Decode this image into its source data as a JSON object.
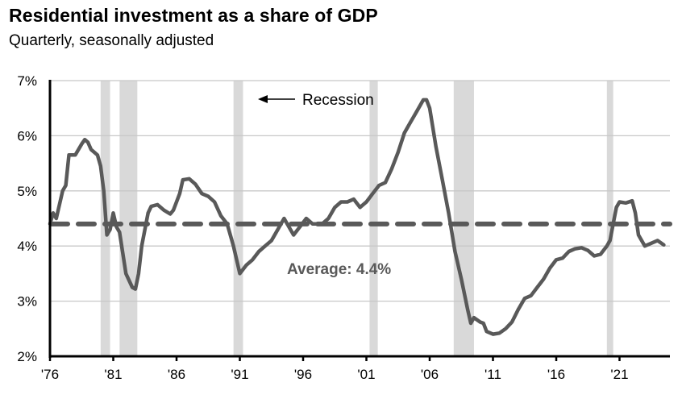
{
  "chart_data": {
    "type": "line",
    "title": "Residential investment as a share of GDP",
    "subtitle": "Quarterly, seasonally adjusted",
    "xlabel": "",
    "ylabel": "",
    "xlim": [
      1976,
      2025
    ],
    "ylim": [
      2,
      7
    ],
    "grid": true,
    "y_ticks": [
      2,
      3,
      4,
      5,
      6,
      7
    ],
    "y_tick_labels": [
      "2%",
      "3%",
      "4%",
      "5%",
      "6%",
      "7%"
    ],
    "x_ticks": [
      1976,
      1981,
      1986,
      1991,
      1996,
      2001,
      2006,
      2011,
      2016,
      2021
    ],
    "x_tick_labels": [
      "'76",
      "'81",
      "'86",
      "'91",
      "'96",
      "'01",
      "'06",
      "'11",
      "'16",
      "'21"
    ],
    "series": [
      {
        "name": "Residential investment share of GDP (%)",
        "color": "#595959",
        "x": [
          1976.0,
          1976.25,
          1976.5,
          1977.0,
          1977.25,
          1977.5,
          1978.0,
          1978.5,
          1978.75,
          1979.0,
          1979.25,
          1979.75,
          1980.0,
          1980.25,
          1980.5,
          1980.75,
          1981.0,
          1981.25,
          1981.5,
          1982.0,
          1982.5,
          1982.75,
          1983.0,
          1983.25,
          1983.75,
          1984.0,
          1984.5,
          1985.0,
          1985.5,
          1985.75,
          1986.25,
          1986.5,
          1987.0,
          1987.5,
          1988.0,
          1988.5,
          1989.0,
          1989.5,
          1990.0,
          1990.5,
          1991.0,
          1991.5,
          1992.0,
          1992.5,
          1993.0,
          1993.5,
          1994.0,
          1994.5,
          1995.0,
          1995.25,
          1995.75,
          1996.25,
          1996.75,
          1997.5,
          1998.0,
          1998.5,
          1999.0,
          1999.5,
          2000.0,
          2000.5,
          2001.0,
          2001.5,
          2002.0,
          2002.5,
          2003.0,
          2003.5,
          2004.0,
          2004.5,
          2005.0,
          2005.5,
          2005.75,
          2006.0,
          2006.5,
          2007.0,
          2007.5,
          2008.0,
          2008.5,
          2009.0,
          2009.25,
          2009.5,
          2010.0,
          2010.25,
          2010.5,
          2011.0,
          2011.5,
          2012.0,
          2012.5,
          2013.0,
          2013.5,
          2014.0,
          2014.5,
          2015.0,
          2015.5,
          2016.0,
          2016.5,
          2017.0,
          2017.5,
          2018.0,
          2018.5,
          2019.0,
          2019.5,
          2020.0,
          2020.25,
          2020.5,
          2020.75,
          2021.0,
          2021.5,
          2022.0,
          2022.25,
          2022.5,
          2023.0,
          2023.5,
          2024.0,
          2024.5
        ],
        "values": [
          4.4,
          4.6,
          4.5,
          5.0,
          5.1,
          5.65,
          5.65,
          5.85,
          5.93,
          5.88,
          5.75,
          5.65,
          5.45,
          5.0,
          4.2,
          4.3,
          4.6,
          4.35,
          4.25,
          3.5,
          3.25,
          3.22,
          3.5,
          4.0,
          4.6,
          4.72,
          4.75,
          4.65,
          4.58,
          4.65,
          4.95,
          5.2,
          5.22,
          5.12,
          4.95,
          4.9,
          4.8,
          4.55,
          4.4,
          4.0,
          3.5,
          3.65,
          3.75,
          3.9,
          4.0,
          4.1,
          4.3,
          4.5,
          4.3,
          4.2,
          4.35,
          4.5,
          4.4,
          4.4,
          4.5,
          4.7,
          4.8,
          4.8,
          4.85,
          4.7,
          4.8,
          4.95,
          5.1,
          5.15,
          5.4,
          5.7,
          6.05,
          6.25,
          6.45,
          6.65,
          6.65,
          6.5,
          5.8,
          5.2,
          4.6,
          3.9,
          3.4,
          2.85,
          2.6,
          2.7,
          2.62,
          2.6,
          2.45,
          2.4,
          2.42,
          2.5,
          2.62,
          2.85,
          3.05,
          3.1,
          3.25,
          3.4,
          3.6,
          3.75,
          3.78,
          3.9,
          3.95,
          3.97,
          3.92,
          3.82,
          3.85,
          4.0,
          4.1,
          4.4,
          4.7,
          4.8,
          4.78,
          4.82,
          4.6,
          4.2,
          4.0,
          4.05,
          4.1,
          4.02
        ]
      },
      {
        "name": "Average",
        "color": "#595959",
        "style": "dashed",
        "value": 4.4
      }
    ],
    "recessions": [
      {
        "start": 1980.0,
        "end": 1980.75
      },
      {
        "start": 1981.5,
        "end": 1982.9
      },
      {
        "start": 1990.5,
        "end": 1991.25
      },
      {
        "start": 2001.25,
        "end": 2001.9
      },
      {
        "start": 2007.9,
        "end": 2009.5
      },
      {
        "start": 2020.0,
        "end": 2020.5
      }
    ],
    "recession_color": "#d9d9d9",
    "annotations": {
      "recession_label": "Recession",
      "average_label": "Average: 4.4%"
    }
  }
}
